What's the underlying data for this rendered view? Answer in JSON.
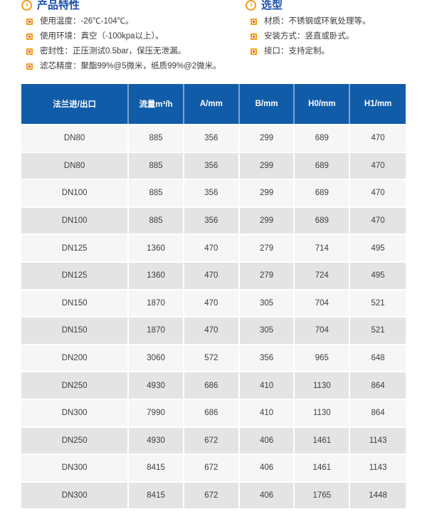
{
  "colors": {
    "accent_orange": "#f39b1d",
    "bullet_inner_orange": "#e2600f",
    "title_blue": "#1b4fae",
    "table_header_blue": "#115ca9",
    "row_light": "#f6f6f6",
    "row_dark": "#e4e4e4",
    "body_text": "#3c3c3c"
  },
  "sections": [
    {
      "title": "产品特性",
      "items": [
        "使用温度：-26℃-104℃。",
        "使用环境：真空（-100kpa以上）。",
        "密封性：正压测试0.5bar，保压无泄漏。",
        "滤芯精度：聚酯99%@5微米，纸质99%@2微米。"
      ]
    },
    {
      "title": "选型",
      "items": [
        "材质：不锈钢或环氧处理等。",
        "安装方式：竖直或卧式。",
        "接口：支持定制。"
      ]
    }
  ],
  "table": {
    "headers": [
      "法兰进/出口",
      "流量m³/h",
      "A/mm",
      "B/mm",
      "H0/mm",
      "H1/mm"
    ],
    "rows": [
      [
        "DN80",
        "885",
        "356",
        "299",
        "689",
        "470"
      ],
      [
        "DN80",
        "885",
        "356",
        "299",
        "689",
        "470"
      ],
      [
        "DN100",
        "885",
        "356",
        "299",
        "689",
        "470"
      ],
      [
        "DN100",
        "885",
        "356",
        "299",
        "689",
        "470"
      ],
      [
        "DN125",
        "1360",
        "470",
        "279",
        "714",
        "495"
      ],
      [
        "DN125",
        "1360",
        "470",
        "279",
        "724",
        "495"
      ],
      [
        "DN150",
        "1870",
        "470",
        "305",
        "704",
        "521"
      ],
      [
        "DN150",
        "1870",
        "470",
        "305",
        "704",
        "521"
      ],
      [
        "DN200",
        "3060",
        "572",
        "356",
        "965",
        "648"
      ],
      [
        "DN250",
        "4930",
        "686",
        "410",
        "1130",
        "864"
      ],
      [
        "DN300",
        "7990",
        "686",
        "410",
        "1130",
        "864"
      ],
      [
        "DN250",
        "4930",
        "672",
        "406",
        "1461",
        "1143"
      ],
      [
        "DN300",
        "8415",
        "672",
        "406",
        "1461",
        "1143"
      ],
      [
        "DN300",
        "8415",
        "672",
        "406",
        "1765",
        "1448"
      ]
    ]
  }
}
